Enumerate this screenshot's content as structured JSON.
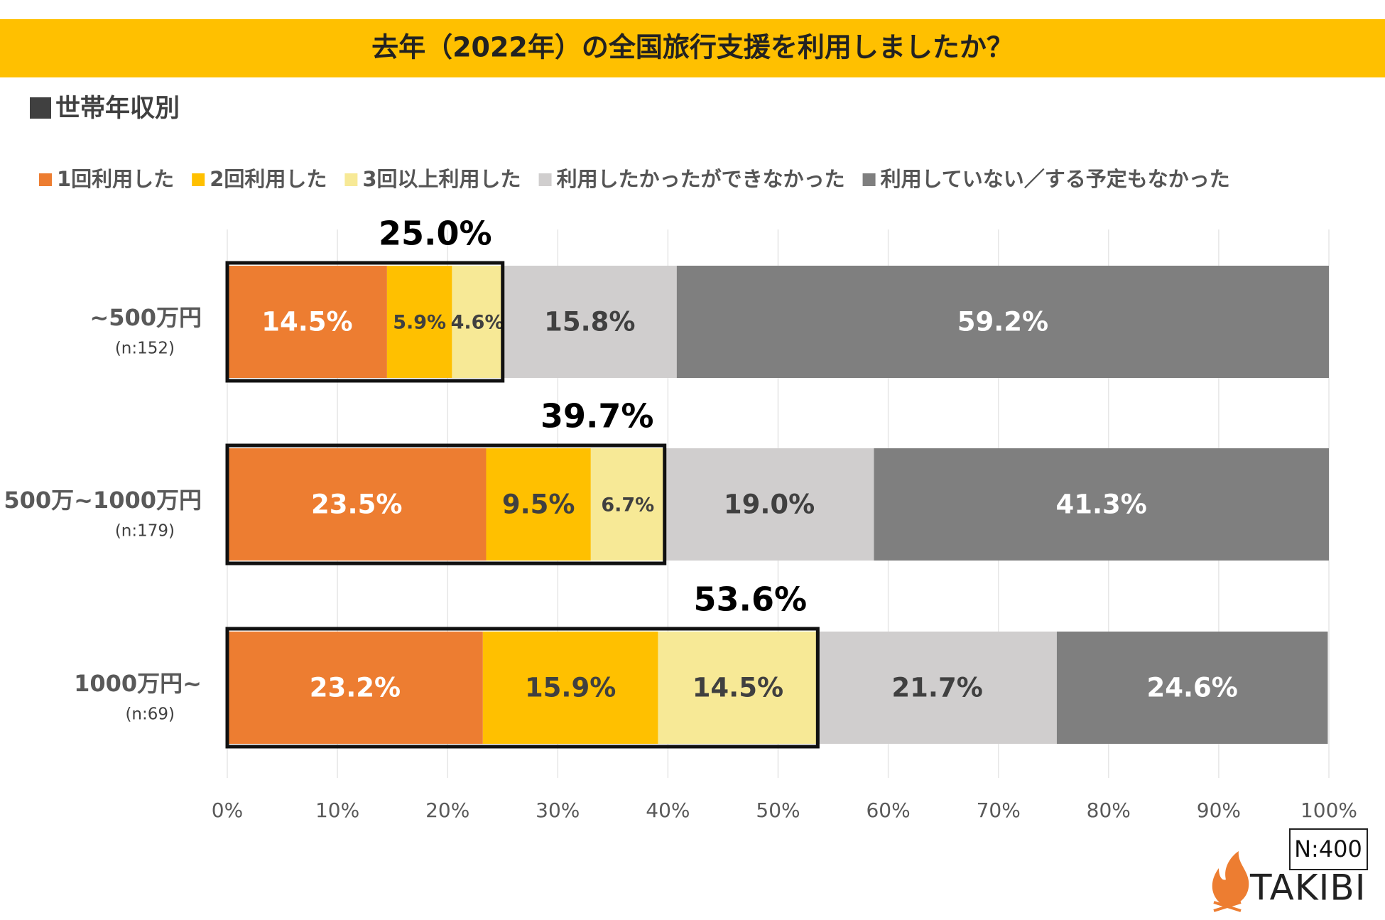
{
  "chart_data": {
    "type": "stacked_barh",
    "title": "去年（2022年）の全国旅行支援を利用しましたか？",
    "subtitle": "世帯年収別",
    "categories": [
      "~500万円",
      "500万~1000万円",
      "1000万円~"
    ],
    "category_notes": [
      "(n:152)",
      "(n:179)",
      "(n:69)"
    ],
    "series": [
      {
        "name": "1回利用した",
        "color": "#ED7D31",
        "values": [
          14.5,
          23.5,
          23.2
        ],
        "value_labels": [
          "14.5%",
          "23.5%",
          "23.2%"
        ]
      },
      {
        "name": "2回利用した",
        "color": "#FFC000",
        "values": [
          5.9,
          9.5,
          15.9
        ],
        "value_labels": [
          "5.9%",
          "9.5%",
          "15.9%"
        ]
      },
      {
        "name": "3回以上利用した",
        "color": "#F7E996",
        "values": [
          4.6,
          6.7,
          14.5
        ],
        "value_labels": [
          "4.6%",
          "6.7%",
          "14.5%"
        ]
      },
      {
        "name": "利用したかったができなかった",
        "color": "#D0CECE",
        "values": [
          15.8,
          19.0,
          21.7
        ],
        "value_labels": [
          "15.8%",
          "19.0%",
          "21.7%"
        ]
      },
      {
        "name": "利用していない／する予定もなかった",
        "color": "#7F7F7F",
        "values": [
          59.2,
          41.3,
          24.6
        ],
        "value_labels": [
          "59.2%",
          "41.3%",
          "24.6%"
        ]
      }
    ],
    "totals": {
      "values": [
        25.0,
        39.7,
        53.6
      ],
      "value_labels": [
        "25.0%",
        "39.7%",
        "53.6%"
      ]
    },
    "xlim": [
      0,
      100
    ],
    "xticks": [
      {
        "value": 0,
        "label": "0%"
      },
      {
        "value": 10,
        "label": "10%"
      },
      {
        "value": 20,
        "label": "20%"
      },
      {
        "value": 30,
        "label": "30%"
      },
      {
        "value": 40,
        "label": "40%"
      },
      {
        "value": 50,
        "label": "50%"
      },
      {
        "value": 60,
        "label": "60%"
      },
      {
        "value": 70,
        "label": "70%"
      },
      {
        "value": 80,
        "label": "80%"
      },
      {
        "value": 90,
        "label": "90%"
      },
      {
        "value": 100,
        "label": "100%"
      }
    ],
    "grid": true,
    "note": "N:400",
    "logo": "TAKIBI"
  }
}
